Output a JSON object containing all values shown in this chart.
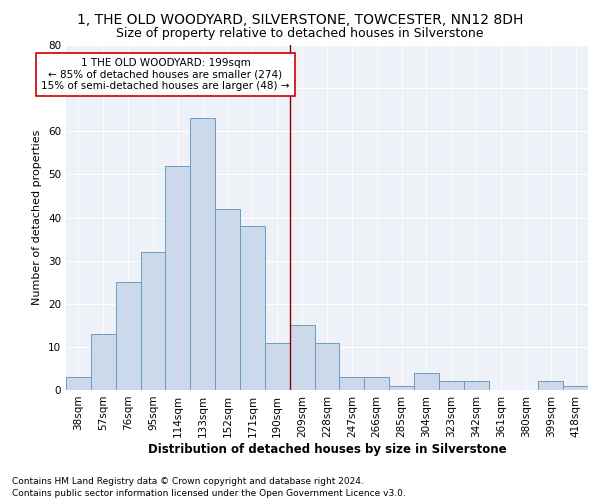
{
  "title": "1, THE OLD WOODYARD, SILVERSTONE, TOWCESTER, NN12 8DH",
  "subtitle": "Size of property relative to detached houses in Silverstone",
  "xlabel": "Distribution of detached houses by size in Silverstone",
  "ylabel": "Number of detached properties",
  "bar_labels": [
    "38sqm",
    "57sqm",
    "76sqm",
    "95sqm",
    "114sqm",
    "133sqm",
    "152sqm",
    "171sqm",
    "190sqm",
    "209sqm",
    "228sqm",
    "247sqm",
    "266sqm",
    "285sqm",
    "304sqm",
    "323sqm",
    "342sqm",
    "361sqm",
    "380sqm",
    "399sqm",
    "418sqm"
  ],
  "bar_values": [
    3,
    13,
    25,
    32,
    52,
    63,
    42,
    38,
    11,
    15,
    11,
    3,
    3,
    1,
    4,
    2,
    2,
    0,
    0,
    2,
    1
  ],
  "bar_color": "#ccd9ea",
  "bar_edge_color": "#6b9dc0",
  "vline_x": 8.5,
  "vline_color": "#8b0000",
  "annotation_text": "1 THE OLD WOODYARD: 199sqm\n← 85% of detached houses are smaller (274)\n15% of semi-detached houses are larger (48) →",
  "annotation_box_color": "#ffffff",
  "annotation_box_edge_color": "#cc0000",
  "ylim": [
    0,
    80
  ],
  "yticks": [
    0,
    10,
    20,
    30,
    40,
    50,
    60,
    70,
    80
  ],
  "footnote1": "Contains HM Land Registry data © Crown copyright and database right 2024.",
  "footnote2": "Contains public sector information licensed under the Open Government Licence v3.0.",
  "title_fontsize": 10,
  "subtitle_fontsize": 9,
  "tick_fontsize": 7.5,
  "ylabel_fontsize": 8,
  "xlabel_fontsize": 8.5,
  "annotation_fontsize": 7.5,
  "footnote_fontsize": 6.5,
  "background_color": "#eef2f8"
}
